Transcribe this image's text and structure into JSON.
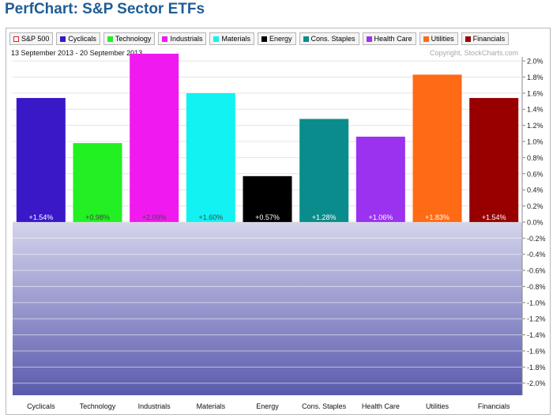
{
  "page": {
    "title": "PerfChart: S&P Sector ETFs",
    "date_range": "13 September 2013 - 20 September 2013",
    "copyright": "Copyright, StockCharts.com"
  },
  "legend": [
    {
      "label": "S&P 500",
      "color": "#e02020",
      "hollow": true
    },
    {
      "label": "Cyclicals",
      "color": "#3a18c8"
    },
    {
      "label": "Technology",
      "color": "#22f022"
    },
    {
      "label": "Industrials",
      "color": "#f01af0"
    },
    {
      "label": "Materials",
      "color": "#12f2f2"
    },
    {
      "label": "Energy",
      "color": "#000000"
    },
    {
      "label": "Cons. Staples",
      "color": "#0a8c8c"
    },
    {
      "label": "Health Care",
      "color": "#9a32f0"
    },
    {
      "label": "Utilities",
      "color": "#ff6a14"
    },
    {
      "label": "Financials",
      "color": "#980000"
    }
  ],
  "chart_data": {
    "type": "bar",
    "categories": [
      "Cyclicals",
      "Technology",
      "Industrials",
      "Materials",
      "Energy",
      "Cons. Staples",
      "Health Care",
      "Utilities",
      "Financials"
    ],
    "values": [
      1.54,
      0.98,
      2.09,
      1.6,
      0.57,
      1.28,
      1.06,
      1.83,
      1.54
    ],
    "value_labels": [
      "+1.54%",
      "+0.98%",
      "+2.09%",
      "+1.60%",
      "+0.57%",
      "+1.28%",
      "+1.06%",
      "+1.83%",
      "+1.54%"
    ],
    "colors": [
      "#3a18c8",
      "#22f022",
      "#f01af0",
      "#12f2f2",
      "#000000",
      "#0a8c8c",
      "#9a32f0",
      "#ff6a14",
      "#980000"
    ],
    "label_colors": [
      "#ffffff",
      "#444444",
      "#444444",
      "#444444",
      "#ffffff",
      "#ffffff",
      "#ffffff",
      "#ffffff",
      "#ffffff"
    ],
    "yticks": [
      2.0,
      1.8,
      1.6,
      1.4,
      1.2,
      1.0,
      0.8,
      0.6,
      0.4,
      0.2,
      0.0,
      -0.2,
      -0.4,
      -0.6,
      -0.8,
      -1.0,
      -1.2,
      -1.4,
      -1.6,
      -1.8,
      -2.0
    ],
    "ytick_labels": [
      "2.0%",
      "1.8%",
      "1.6%",
      "1.4%",
      "1.2%",
      "1.0%",
      "0.8%",
      "0.6%",
      "0.4%",
      "0.2%",
      "0.0%",
      "-0.2%",
      "-0.4%",
      "-0.6%",
      "-0.8%",
      "-1.0%",
      "-1.2%",
      "-1.4%",
      "-1.6%",
      "-1.8%",
      "-2.0%"
    ],
    "ylim": [
      -2.15,
      2.05
    ],
    "xlabel": "",
    "ylabel": "",
    "grid": true,
    "negative_region_gradient": [
      "#d4d4ec",
      "#5a5aae"
    ]
  }
}
